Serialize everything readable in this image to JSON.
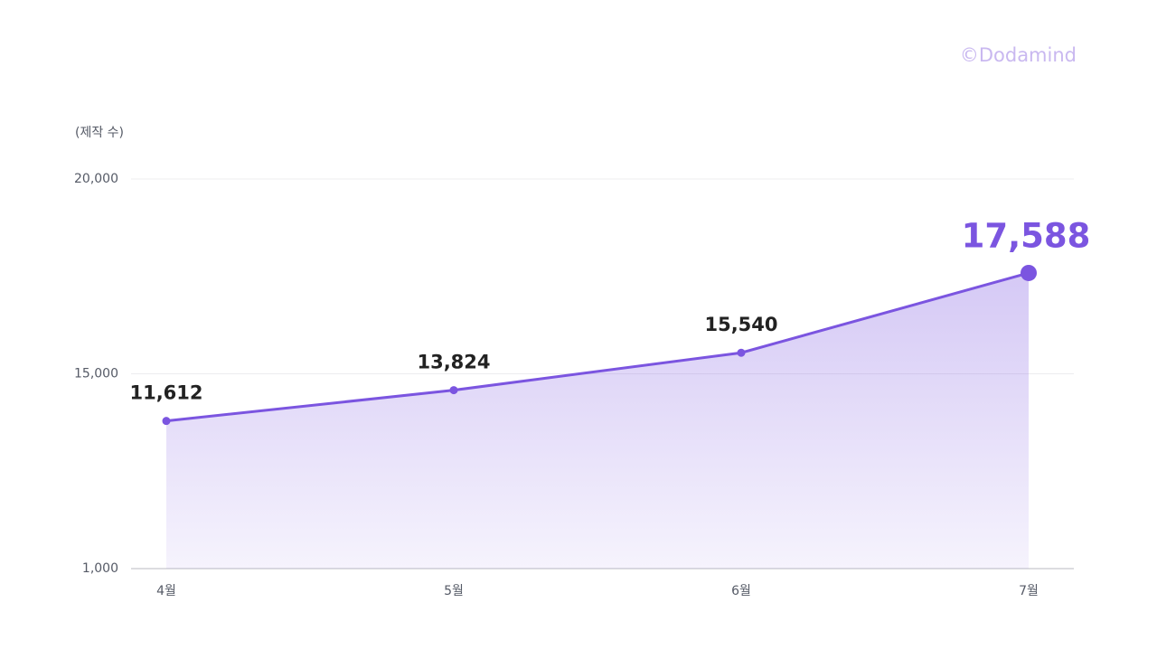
{
  "chart_data": {
    "type": "area",
    "y_axis_label": "(제작 수)",
    "watermark": "©Dodamind",
    "categories": [
      "4월",
      "5월",
      "6월",
      "7월"
    ],
    "values": [
      11612,
      13824,
      15540,
      17588
    ],
    "value_labels": [
      "11,612",
      "13,824",
      "15,540",
      "17,588"
    ],
    "color": "#7b55e0",
    "ylim": [
      1000,
      20000
    ],
    "yticks": [
      {
        "value": 1000,
        "label": "1,000"
      },
      {
        "value": 15000,
        "label": "15,000"
      },
      {
        "value": 20000,
        "label": "20,000"
      }
    ],
    "grid": true
  }
}
